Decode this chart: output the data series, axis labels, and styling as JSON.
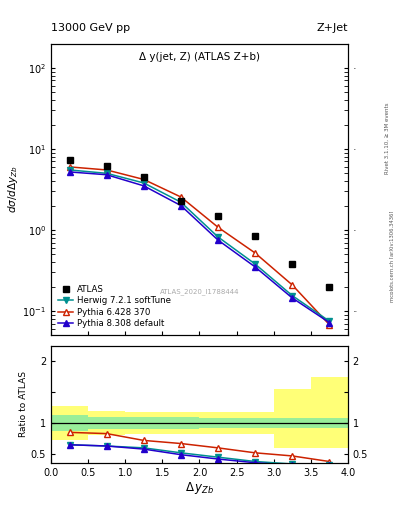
{
  "title_left": "13000 GeV pp",
  "title_right": "Z+Jet",
  "plot_label": "Δ y(jet, Z) (ATLAS Z+b)",
  "watermark": "ATLAS_2020_I1788444",
  "right_label_top": "Rivet 3.1.10, ≥ 3M events",
  "right_label_bot": "mcplots.cern.ch [arXiv:1306.3436]",
  "xlabel": "Δ y_{Zb}",
  "ylabel_main": "dσ/dΔ y_{Zb}",
  "ylabel_ratio": "Ratio to ATLAS",
  "atlas_x": [
    0.25,
    0.75,
    1.25,
    1.75,
    2.25,
    2.75,
    3.25,
    3.75
  ],
  "atlas_y": [
    7.2,
    6.2,
    4.5,
    2.3,
    1.5,
    0.85,
    0.38,
    0.2
  ],
  "herwig_x": [
    0.25,
    0.75,
    1.25,
    1.75,
    2.25,
    2.75,
    3.25,
    3.75
  ],
  "herwig_y": [
    5.5,
    5.0,
    3.8,
    2.2,
    0.82,
    0.38,
    0.155,
    0.075
  ],
  "pythia6_x": [
    0.25,
    0.75,
    1.25,
    1.75,
    2.25,
    2.75,
    3.25,
    3.75
  ],
  "pythia6_y": [
    6.0,
    5.5,
    4.2,
    2.55,
    1.08,
    0.52,
    0.21,
    0.068
  ],
  "pythia8_x": [
    0.25,
    0.75,
    1.25,
    1.75,
    2.25,
    2.75,
    3.25,
    3.75
  ],
  "pythia8_y": [
    5.2,
    4.8,
    3.5,
    2.0,
    0.75,
    0.35,
    0.145,
    0.072
  ],
  "herwig_ratio": [
    0.65,
    0.63,
    0.6,
    0.52,
    0.45,
    0.38,
    0.34,
    0.33
  ],
  "pythia6_ratio": [
    0.85,
    0.83,
    0.72,
    0.67,
    0.6,
    0.52,
    0.47,
    0.38
  ],
  "pythia8_ratio": [
    0.65,
    0.63,
    0.58,
    0.49,
    0.42,
    0.36,
    0.32,
    0.32
  ],
  "band_edges": [
    0.0,
    0.5,
    1.0,
    1.5,
    2.0,
    2.5,
    3.0,
    3.5,
    4.0
  ],
  "band_yellow_low": [
    0.72,
    0.8,
    0.82,
    0.82,
    0.82,
    0.82,
    0.6,
    0.6
  ],
  "band_yellow_high": [
    1.28,
    1.2,
    1.18,
    1.18,
    1.18,
    1.18,
    1.55,
    1.75
  ],
  "band_green_low": [
    0.87,
    0.9,
    0.9,
    0.9,
    0.92,
    0.92,
    0.92,
    0.92
  ],
  "band_green_high": [
    1.13,
    1.1,
    1.1,
    1.1,
    1.08,
    1.08,
    1.08,
    1.08
  ],
  "herwig_color": "#009090",
  "pythia6_color": "#cc2200",
  "pythia8_color": "#2200cc",
  "atlas_color": "black"
}
